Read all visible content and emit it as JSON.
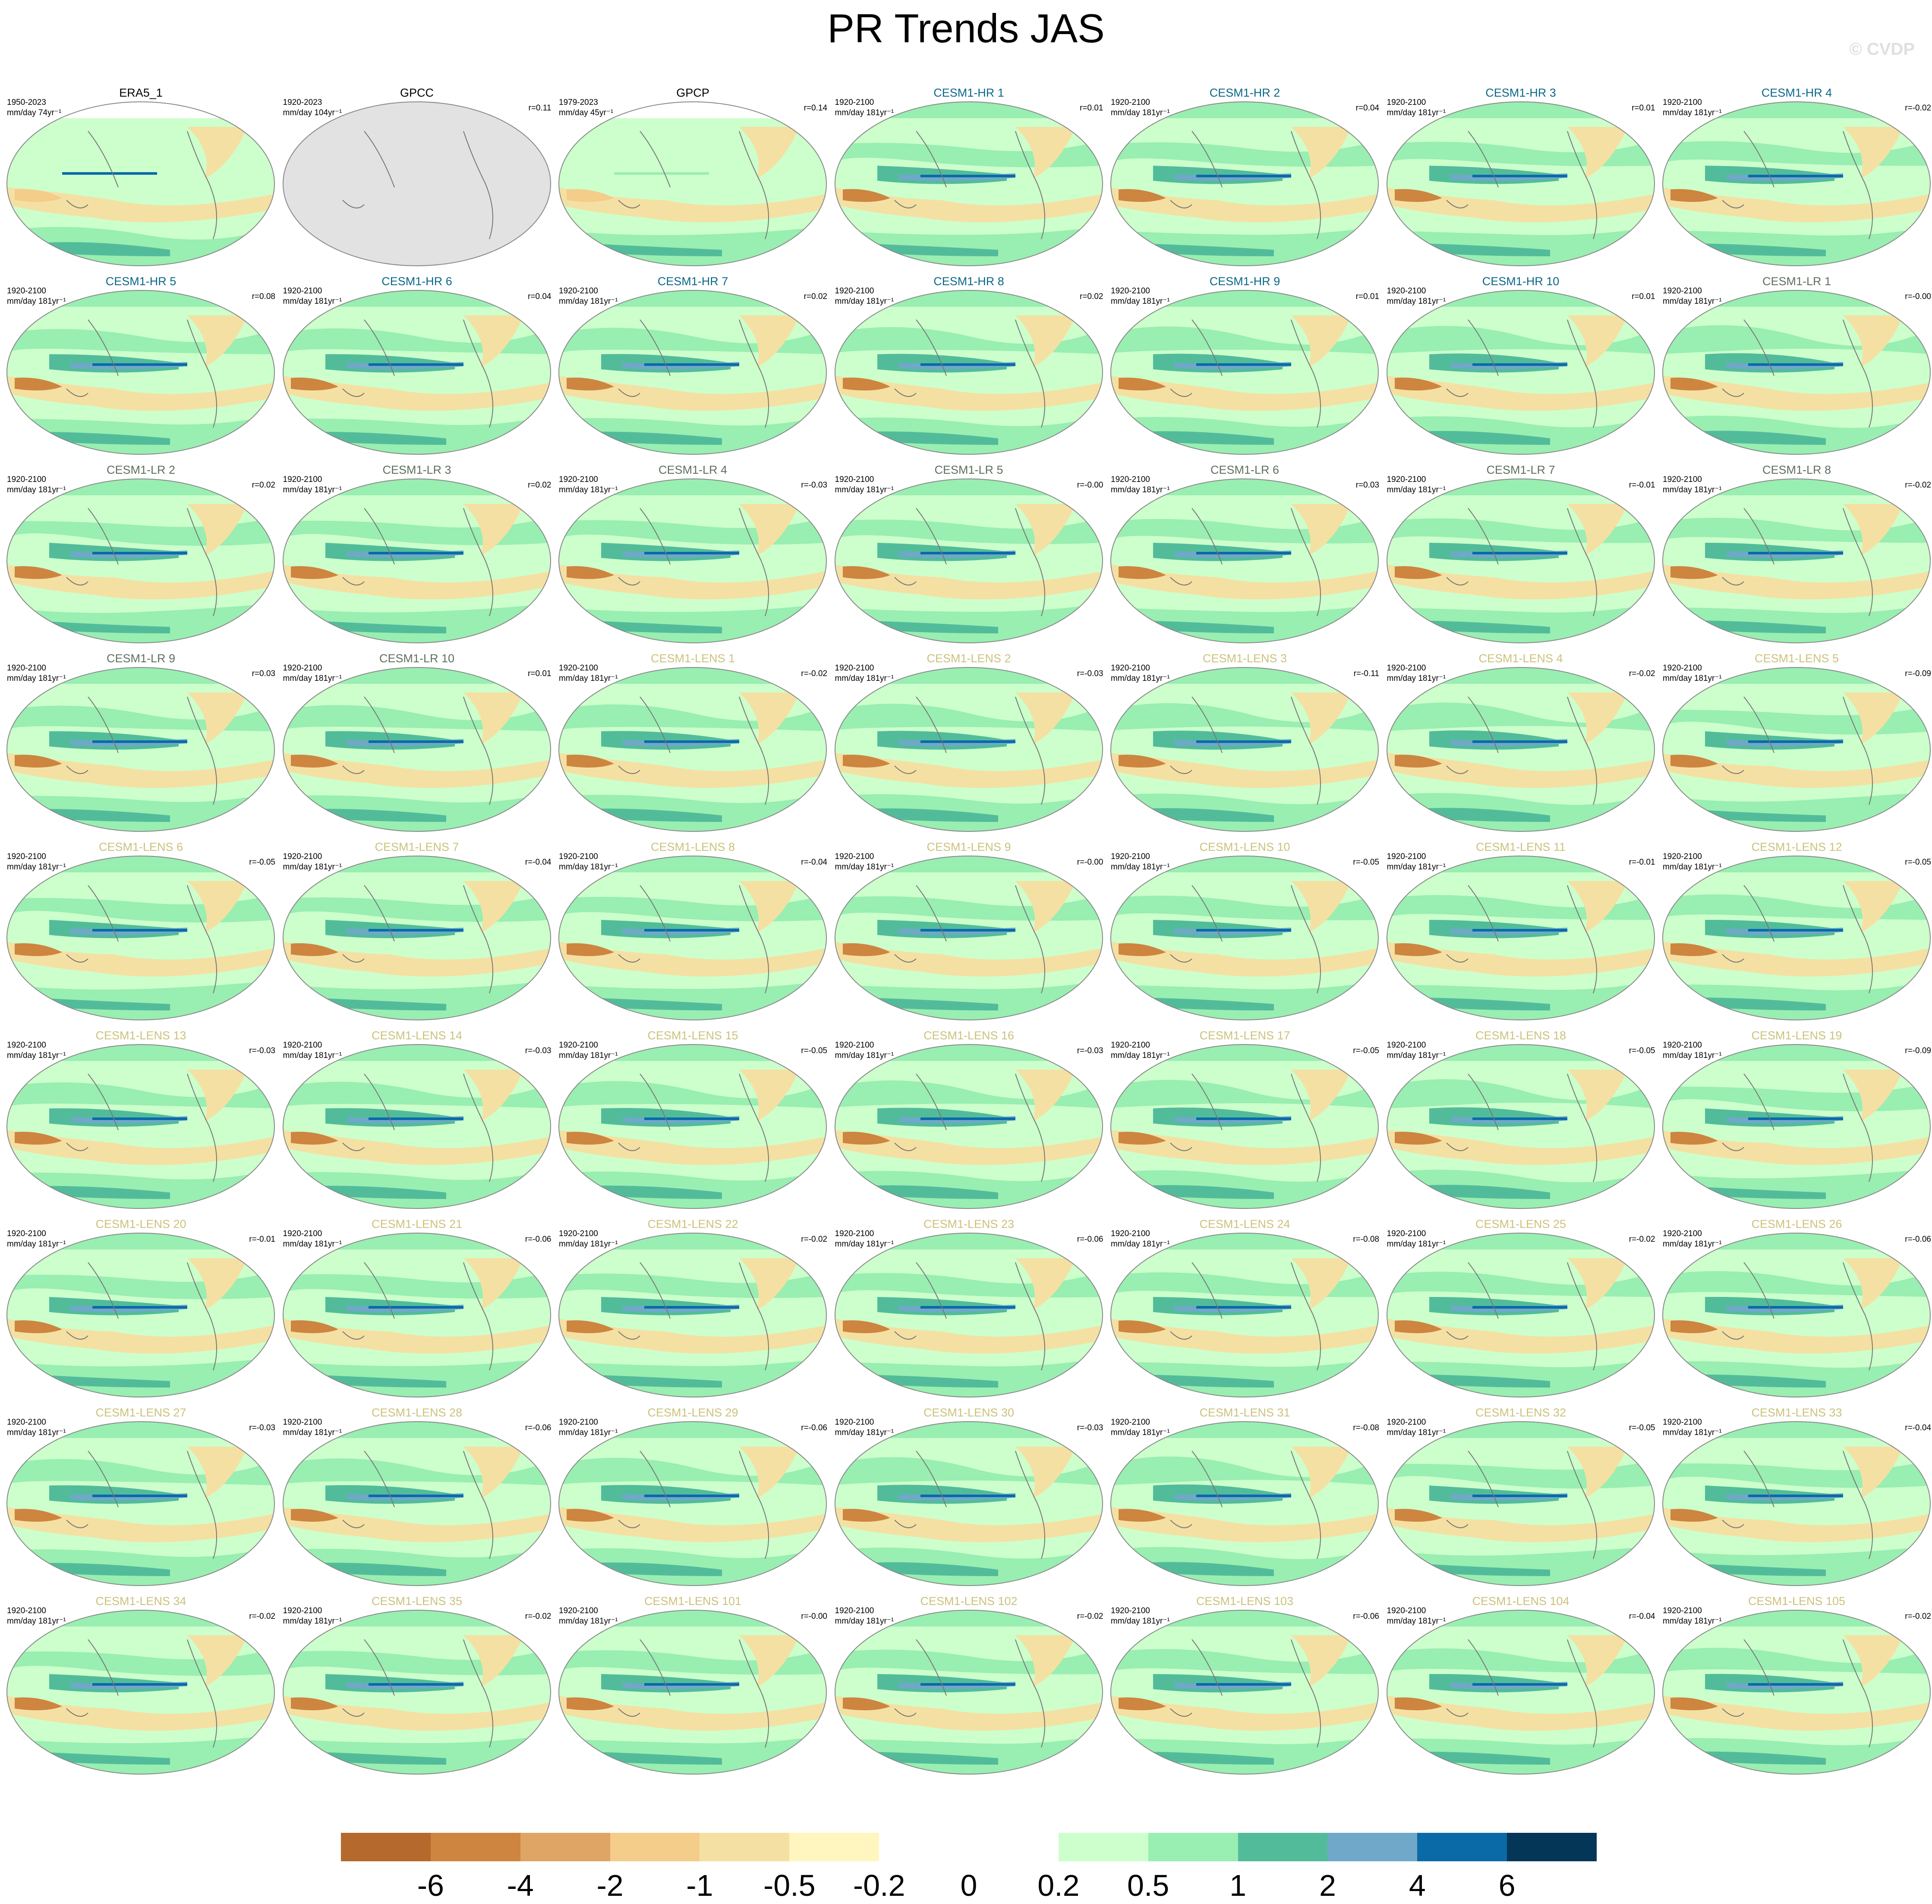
{
  "title": "PR Trends JAS",
  "watermark": "© CVDP",
  "group_colors": {
    "obs": "#000000",
    "CESM1-HR": "#0b6788",
    "CESM1-LR": "#5f6f5f",
    "CESM1-LENS": "#cbc27c"
  },
  "panels": [
    {
      "label": "ERA5_1",
      "group": "obs",
      "period": "1950-2023",
      "units": "mm/day 74yr⁻¹",
      "r": ""
    },
    {
      "label": "GPCC",
      "group": "obs",
      "period": "1920-2023",
      "units": "mm/day 104yr⁻¹",
      "r": "r=0.11"
    },
    {
      "label": "GPCP",
      "group": "obs",
      "period": "1979-2023",
      "units": "mm/day 45yr⁻¹",
      "r": "r=0.14"
    },
    {
      "label": "CESM1-HR 1",
      "group": "CESM1-HR",
      "period": "1920-2100",
      "units": "mm/day 181yr⁻¹",
      "r": "r=0.01"
    },
    {
      "label": "CESM1-HR 2",
      "group": "CESM1-HR",
      "period": "1920-2100",
      "units": "mm/day 181yr⁻¹",
      "r": "r=0.04"
    },
    {
      "label": "CESM1-HR 3",
      "group": "CESM1-HR",
      "period": "1920-2100",
      "units": "mm/day 181yr⁻¹",
      "r": "r=0.01"
    },
    {
      "label": "CESM1-HR 4",
      "group": "CESM1-HR",
      "period": "1920-2100",
      "units": "mm/day 181yr⁻¹",
      "r": "r=-0.02"
    },
    {
      "label": "CESM1-HR 5",
      "group": "CESM1-HR",
      "period": "1920-2100",
      "units": "mm/day 181yr⁻¹",
      "r": "r=0.08"
    },
    {
      "label": "CESM1-HR 6",
      "group": "CESM1-HR",
      "period": "1920-2100",
      "units": "mm/day 181yr⁻¹",
      "r": "r=0.04"
    },
    {
      "label": "CESM1-HR 7",
      "group": "CESM1-HR",
      "period": "1920-2100",
      "units": "mm/day 181yr⁻¹",
      "r": "r=0.02"
    },
    {
      "label": "CESM1-HR 8",
      "group": "CESM1-HR",
      "period": "1920-2100",
      "units": "mm/day 181yr⁻¹",
      "r": "r=0.02"
    },
    {
      "label": "CESM1-HR 9",
      "group": "CESM1-HR",
      "period": "1920-2100",
      "units": "mm/day 181yr⁻¹",
      "r": "r=0.01"
    },
    {
      "label": "CESM1-HR 10",
      "group": "CESM1-HR",
      "period": "1920-2100",
      "units": "mm/day 181yr⁻¹",
      "r": "r=0.01"
    },
    {
      "label": "CESM1-LR 1",
      "group": "CESM1-LR",
      "period": "1920-2100",
      "units": "mm/day 181yr⁻¹",
      "r": "r=-0.00"
    },
    {
      "label": "CESM1-LR 2",
      "group": "CESM1-LR",
      "period": "1920-2100",
      "units": "mm/day 181yr⁻¹",
      "r": "r=0.02"
    },
    {
      "label": "CESM1-LR 3",
      "group": "CESM1-LR",
      "period": "1920-2100",
      "units": "mm/day 181yr⁻¹",
      "r": "r=0.02"
    },
    {
      "label": "CESM1-LR 4",
      "group": "CESM1-LR",
      "period": "1920-2100",
      "units": "mm/day 181yr⁻¹",
      "r": "r=-0.03"
    },
    {
      "label": "CESM1-LR 5",
      "group": "CESM1-LR",
      "period": "1920-2100",
      "units": "mm/day 181yr⁻¹",
      "r": "r=-0.00"
    },
    {
      "label": "CESM1-LR 6",
      "group": "CESM1-LR",
      "period": "1920-2100",
      "units": "mm/day 181yr⁻¹",
      "r": "r=0.03"
    },
    {
      "label": "CESM1-LR 7",
      "group": "CESM1-LR",
      "period": "1920-2100",
      "units": "mm/day 181yr⁻¹",
      "r": "r=-0.01"
    },
    {
      "label": "CESM1-LR 8",
      "group": "CESM1-LR",
      "period": "1920-2100",
      "units": "mm/day 181yr⁻¹",
      "r": "r=-0.02"
    },
    {
      "label": "CESM1-LR 9",
      "group": "CESM1-LR",
      "period": "1920-2100",
      "units": "mm/day 181yr⁻¹",
      "r": "r=0.03"
    },
    {
      "label": "CESM1-LR 10",
      "group": "CESM1-LR",
      "period": "1920-2100",
      "units": "mm/day 181yr⁻¹",
      "r": "r=0.01"
    },
    {
      "label": "CESM1-LENS 1",
      "group": "CESM1-LENS",
      "period": "1920-2100",
      "units": "mm/day 181yr⁻¹",
      "r": "r=-0.02"
    },
    {
      "label": "CESM1-LENS 2",
      "group": "CESM1-LENS",
      "period": "1920-2100",
      "units": "mm/day 181yr⁻¹",
      "r": "r=-0.03"
    },
    {
      "label": "CESM1-LENS 3",
      "group": "CESM1-LENS",
      "period": "1920-2100",
      "units": "mm/day 181yr⁻¹",
      "r": "r=-0.11"
    },
    {
      "label": "CESM1-LENS 4",
      "group": "CESM1-LENS",
      "period": "1920-2100",
      "units": "mm/day 181yr⁻¹",
      "r": "r=-0.02"
    },
    {
      "label": "CESM1-LENS 5",
      "group": "CESM1-LENS",
      "period": "1920-2100",
      "units": "mm/day 181yr⁻¹",
      "r": "r=-0.09"
    },
    {
      "label": "CESM1-LENS 6",
      "group": "CESM1-LENS",
      "period": "1920-2100",
      "units": "mm/day 181yr⁻¹",
      "r": "r=-0.05"
    },
    {
      "label": "CESM1-LENS 7",
      "group": "CESM1-LENS",
      "period": "1920-2100",
      "units": "mm/day 181yr⁻¹",
      "r": "r=-0.04"
    },
    {
      "label": "CESM1-LENS 8",
      "group": "CESM1-LENS",
      "period": "1920-2100",
      "units": "mm/day 181yr⁻¹",
      "r": "r=-0.04"
    },
    {
      "label": "CESM1-LENS 9",
      "group": "CESM1-LENS",
      "period": "1920-2100",
      "units": "mm/day 181yr⁻¹",
      "r": "r=-0.00"
    },
    {
      "label": "CESM1-LENS 10",
      "group": "CESM1-LENS",
      "period": "1920-2100",
      "units": "mm/day 181yr⁻¹",
      "r": "r=-0.05"
    },
    {
      "label": "CESM1-LENS 11",
      "group": "CESM1-LENS",
      "period": "1920-2100",
      "units": "mm/day 181yr⁻¹",
      "r": "r=-0.01"
    },
    {
      "label": "CESM1-LENS 12",
      "group": "CESM1-LENS",
      "period": "1920-2100",
      "units": "mm/day 181yr⁻¹",
      "r": "r=-0.05"
    },
    {
      "label": "CESM1-LENS 13",
      "group": "CESM1-LENS",
      "period": "1920-2100",
      "units": "mm/day 181yr⁻¹",
      "r": "r=-0.03"
    },
    {
      "label": "CESM1-LENS 14",
      "group": "CESM1-LENS",
      "period": "1920-2100",
      "units": "mm/day 181yr⁻¹",
      "r": "r=-0.03"
    },
    {
      "label": "CESM1-LENS 15",
      "group": "CESM1-LENS",
      "period": "1920-2100",
      "units": "mm/day 181yr⁻¹",
      "r": "r=-0.05"
    },
    {
      "label": "CESM1-LENS 16",
      "group": "CESM1-LENS",
      "period": "1920-2100",
      "units": "mm/day 181yr⁻¹",
      "r": "r=-0.03"
    },
    {
      "label": "CESM1-LENS 17",
      "group": "CESM1-LENS",
      "period": "1920-2100",
      "units": "mm/day 181yr⁻¹",
      "r": "r=-0.05"
    },
    {
      "label": "CESM1-LENS 18",
      "group": "CESM1-LENS",
      "period": "1920-2100",
      "units": "mm/day 181yr⁻¹",
      "r": "r=-0.05"
    },
    {
      "label": "CESM1-LENS 19",
      "group": "CESM1-LENS",
      "period": "1920-2100",
      "units": "mm/day 181yr⁻¹",
      "r": "r=-0.09"
    },
    {
      "label": "CESM1-LENS 20",
      "group": "CESM1-LENS",
      "period": "1920-2100",
      "units": "mm/day 181yr⁻¹",
      "r": "r=-0.01"
    },
    {
      "label": "CESM1-LENS 21",
      "group": "CESM1-LENS",
      "period": "1920-2100",
      "units": "mm/day 181yr⁻¹",
      "r": "r=-0.06"
    },
    {
      "label": "CESM1-LENS 22",
      "group": "CESM1-LENS",
      "period": "1920-2100",
      "units": "mm/day 181yr⁻¹",
      "r": "r=-0.02"
    },
    {
      "label": "CESM1-LENS 23",
      "group": "CESM1-LENS",
      "period": "1920-2100",
      "units": "mm/day 181yr⁻¹",
      "r": "r=-0.06"
    },
    {
      "label": "CESM1-LENS 24",
      "group": "CESM1-LENS",
      "period": "1920-2100",
      "units": "mm/day 181yr⁻¹",
      "r": "r=-0.08"
    },
    {
      "label": "CESM1-LENS 25",
      "group": "CESM1-LENS",
      "period": "1920-2100",
      "units": "mm/day 181yr⁻¹",
      "r": "r=-0.02"
    },
    {
      "label": "CESM1-LENS 26",
      "group": "CESM1-LENS",
      "period": "1920-2100",
      "units": "mm/day 181yr⁻¹",
      "r": "r=-0.06"
    },
    {
      "label": "CESM1-LENS 27",
      "group": "CESM1-LENS",
      "period": "1920-2100",
      "units": "mm/day 181yr⁻¹",
      "r": "r=-0.03"
    },
    {
      "label": "CESM1-LENS 28",
      "group": "CESM1-LENS",
      "period": "1920-2100",
      "units": "mm/day 181yr⁻¹",
      "r": "r=-0.06"
    },
    {
      "label": "CESM1-LENS 29",
      "group": "CESM1-LENS",
      "period": "1920-2100",
      "units": "mm/day 181yr⁻¹",
      "r": "r=-0.06"
    },
    {
      "label": "CESM1-LENS 30",
      "group": "CESM1-LENS",
      "period": "1920-2100",
      "units": "mm/day 181yr⁻¹",
      "r": "r=-0.03"
    },
    {
      "label": "CESM1-LENS 31",
      "group": "CESM1-LENS",
      "period": "1920-2100",
      "units": "mm/day 181yr⁻¹",
      "r": "r=-0.08"
    },
    {
      "label": "CESM1-LENS 32",
      "group": "CESM1-LENS",
      "period": "1920-2100",
      "units": "mm/day 181yr⁻¹",
      "r": "r=-0.05"
    },
    {
      "label": "CESM1-LENS 33",
      "group": "CESM1-LENS",
      "period": "1920-2100",
      "units": "mm/day 181yr⁻¹",
      "r": "r=-0.04"
    },
    {
      "label": "CESM1-LENS 34",
      "group": "CESM1-LENS",
      "period": "1920-2100",
      "units": "mm/day 181yr⁻¹",
      "r": "r=-0.02"
    },
    {
      "label": "CESM1-LENS 35",
      "group": "CESM1-LENS",
      "period": "1920-2100",
      "units": "mm/day 181yr⁻¹",
      "r": "r=-0.02"
    },
    {
      "label": "CESM1-LENS 101",
      "group": "CESM1-LENS",
      "period": "1920-2100",
      "units": "mm/day 181yr⁻¹",
      "r": "r=-0.00"
    },
    {
      "label": "CESM1-LENS 102",
      "group": "CESM1-LENS",
      "period": "1920-2100",
      "units": "mm/day 181yr⁻¹",
      "r": "r=-0.02"
    },
    {
      "label": "CESM1-LENS 103",
      "group": "CESM1-LENS",
      "period": "1920-2100",
      "units": "mm/day 181yr⁻¹",
      "r": "r=-0.06"
    },
    {
      "label": "CESM1-LENS 104",
      "group": "CESM1-LENS",
      "period": "1920-2100",
      "units": "mm/day 181yr⁻¹",
      "r": "r=-0.04"
    },
    {
      "label": "CESM1-LENS 105",
      "group": "CESM1-LENS",
      "period": "1920-2100",
      "units": "mm/day 181yr⁻¹",
      "r": "r=-0.02"
    }
  ],
  "chart_data": {
    "type": "heatmap",
    "title": "PR Trends JAS",
    "projection": "global map panels, 7 columns x 9 rows",
    "colorbar": {
      "levels": [
        "-6",
        "-4",
        "-2",
        "-1",
        "-0.5",
        "-0.2",
        "0",
        "0.2",
        "0.5",
        "1",
        "2",
        "4",
        "6"
      ],
      "colors": [
        "#b5692c",
        "#cd853f",
        "#dea564",
        "#f4cd8a",
        "#f5e0a3",
        "#fff6bf",
        "#ffffff",
        "#ffffff",
        "#ccffcc",
        "#99eeb1",
        "#52bc9a",
        "#6fa8c8",
        "#0a6aa8",
        "#043657"
      ],
      "placement": "bottom"
    }
  }
}
